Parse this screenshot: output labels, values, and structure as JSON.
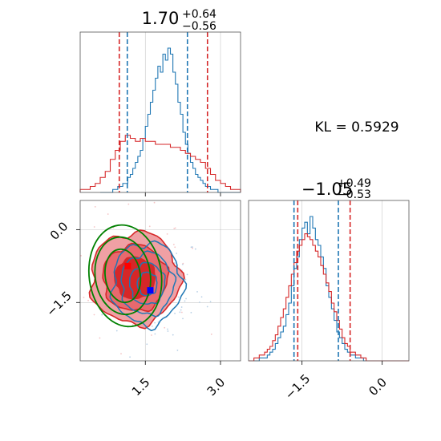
{
  "chart_data": [
    {
      "type": "histogram",
      "panel": "marginal-x1",
      "title": {
        "median": "1.70",
        "plus": "+0.64",
        "minus": "−0.56"
      },
      "xlim": [
        0.2,
        3.4
      ],
      "series": [
        {
          "name": "",
          "color": "#1f77b4",
          "bin_edges_start": 0.6,
          "bin_width": 0.05,
          "counts": [
            0,
            0,
            0,
            0,
            0,
            1,
            1,
            2,
            2,
            3,
            3,
            5,
            6,
            8,
            10,
            12,
            14,
            18,
            22,
            26,
            30,
            34,
            38,
            42,
            40,
            46,
            44,
            48,
            46,
            40,
            36,
            30,
            26,
            20,
            16,
            13,
            10,
            8,
            6,
            5,
            4,
            3,
            2,
            2,
            1,
            1,
            1,
            0,
            0,
            0,
            0,
            0,
            0,
            0,
            0,
            0
          ],
          "quantiles": [
            1.14,
            1.7,
            2.34
          ]
        },
        {
          "name": "",
          "color": "#d62728",
          "bin_edges_start": 0.2,
          "bin_width": 0.1,
          "counts": [
            1,
            1,
            2,
            3,
            5,
            7,
            11,
            14,
            17,
            19,
            18,
            17,
            18,
            17,
            17,
            16,
            16,
            16,
            15,
            15,
            14,
            13,
            12,
            11,
            10,
            8,
            6,
            4,
            3,
            2,
            1,
            1
          ],
          "quantiles": [
            1.14,
            1.7,
            2.34
          ]
        }
      ],
      "dashed_lines": {
        "blue": [
          1.14,
          2.34
        ],
        "red": [
          0.98,
          2.74
        ]
      },
      "xticks": [
        1.5,
        3.0
      ]
    },
    {
      "type": "histogram",
      "panel": "marginal-x2",
      "title": {
        "median": "−1.05",
        "plus": "+0.49",
        "minus": "−0.53"
      },
      "xlim": [
        -2.5,
        0.5
      ],
      "series": [
        {
          "name": "",
          "color": "#1f77b4",
          "bin_edges_start": -2.4,
          "bin_width": 0.05,
          "counts": [
            0,
            0,
            1,
            1,
            1,
            2,
            3,
            4,
            6,
            8,
            10,
            12,
            16,
            20,
            26,
            32,
            36,
            42,
            46,
            48,
            44,
            50,
            46,
            42,
            40,
            36,
            32,
            26,
            22,
            18,
            14,
            10,
            8,
            6,
            4,
            3,
            2,
            2,
            1,
            1,
            1,
            0,
            0,
            0,
            0,
            0,
            0,
            0
          ]
        },
        {
          "name": "",
          "color": "#d62728",
          "bin_edges_start": -2.5,
          "bin_width": 0.05,
          "counts": [
            0,
            0,
            1,
            1,
            2,
            2,
            3,
            4,
            5,
            7,
            9,
            12,
            15,
            18,
            22,
            26,
            30,
            34,
            38,
            40,
            42,
            44,
            43,
            42,
            40,
            38,
            36,
            33,
            30,
            27,
            24,
            20,
            17,
            14,
            11,
            8,
            6,
            5,
            3,
            3,
            2,
            2,
            1,
            1,
            0,
            0,
            0,
            0,
            0,
            0,
            0,
            0,
            0,
            0,
            0,
            0,
            0,
            0,
            0,
            0
          ]
        }
      ],
      "dashed_lines": {
        "blue": [
          -1.65,
          -0.82
        ],
        "red": [
          -1.58,
          -0.6
        ]
      },
      "xticks": [
        -1.5,
        0.0
      ]
    },
    {
      "type": "contour",
      "panel": "joint",
      "xlim": [
        0.2,
        3.4
      ],
      "ylim": [
        -2.7,
        0.6
      ],
      "xticks": [
        1.5,
        3.0
      ],
      "yticks": [
        0.0,
        -1.5
      ],
      "xticklabels": [
        "1.5",
        "3.0"
      ],
      "yticklabels": [
        "0.0",
        "−1.5"
      ],
      "red_fill_levels": [
        "#f0a0a4",
        "#e8696e",
        "#d62728"
      ],
      "red_center": [
        1.2,
        -0.9
      ],
      "red_spread": [
        0.85,
        0.9
      ],
      "blue_center": [
        1.7,
        -1.25
      ],
      "blue_spread": [
        0.7,
        0.85
      ],
      "green_ellipses": [
        {
          "center": [
            1.05,
            -0.95
          ],
          "rx": 0.35,
          "ry": 0.55
        },
        {
          "center": [
            1.05,
            -0.95
          ],
          "rx": 0.55,
          "ry": 0.8
        },
        {
          "center": [
            1.1,
            -0.95
          ],
          "rx": 0.72,
          "ry": 1.05
        }
      ],
      "markers": [
        {
          "x": 1.15,
          "y": -0.75,
          "color": "#ff0000"
        },
        {
          "x": 1.6,
          "y": -1.25,
          "color": "#0000ff"
        }
      ]
    }
  ],
  "kl": {
    "text": "KL = 0.5929"
  },
  "colors": {
    "blue": "#1f77b4",
    "red": "#d62728",
    "green": "#008000"
  },
  "tick_labels": {
    "joint_x": [
      "1.5",
      "3.0"
    ],
    "joint_y": [
      "0.0",
      "−1.5"
    ],
    "marg2_x": [
      "−1.5",
      "0.0"
    ]
  }
}
